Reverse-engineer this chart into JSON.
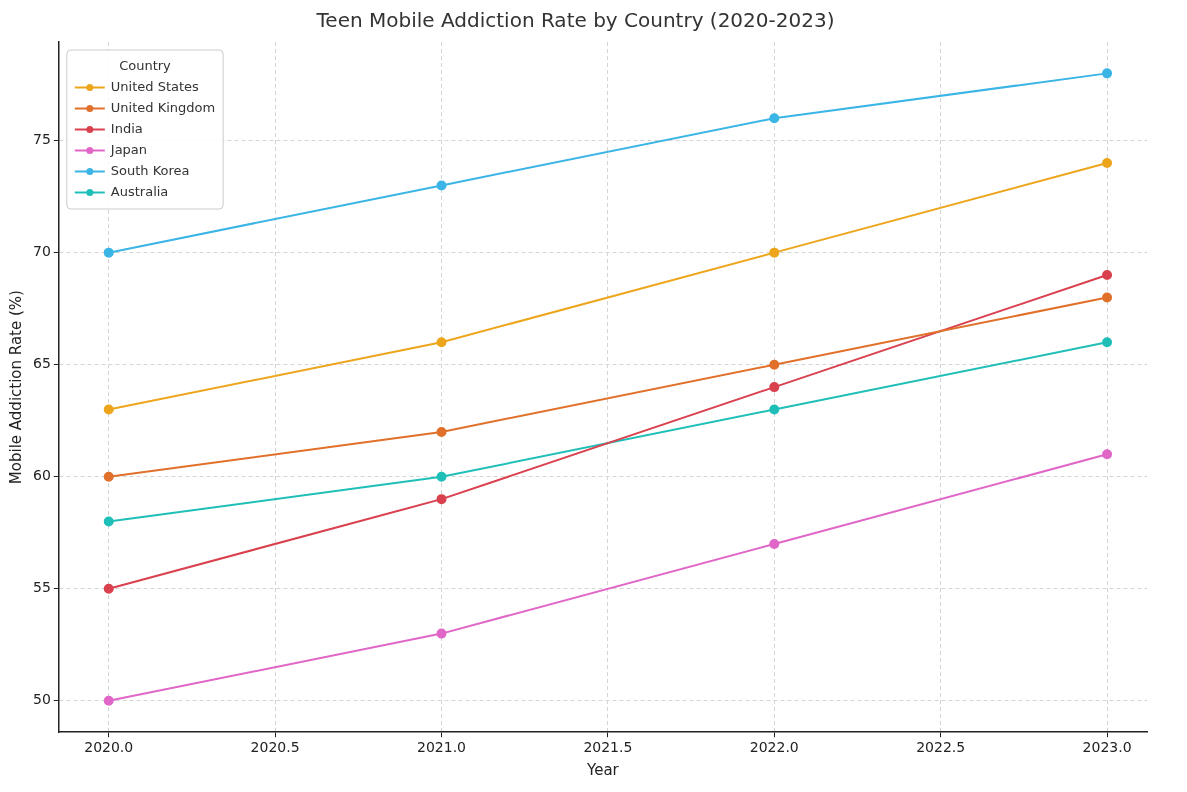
{
  "chart_data": {
    "type": "line",
    "title": "Teen Mobile Addiction Rate by Country (2020-2023)",
    "xlabel": "Year",
    "ylabel": "Mobile Addiction Rate (%)",
    "legend_title": "Country",
    "x": [
      2020,
      2021,
      2022,
      2023
    ],
    "series": [
      {
        "name": "United States",
        "color": "#eda51c",
        "values": [
          63,
          66,
          70,
          74
        ]
      },
      {
        "name": "United Kingdom",
        "color": "#e0702a",
        "values": [
          60,
          62,
          65,
          68
        ]
      },
      {
        "name": "India",
        "color": "#d9414e",
        "values": [
          55,
          59,
          64,
          69
        ]
      },
      {
        "name": "Japan",
        "color": "#e066c7",
        "values": [
          50,
          53,
          57,
          61
        ]
      },
      {
        "name": "South Korea",
        "color": "#3bb5e5",
        "values": [
          70,
          73,
          76,
          78
        ]
      },
      {
        "name": "Australia",
        "color": "#1fbfb8",
        "values": [
          58,
          60,
          63,
          66
        ]
      }
    ],
    "xlim": [
      2019.85,
      2023.12
    ],
    "ylim": [
      48.6,
      79.4
    ],
    "xticks": [
      {
        "value": 2020,
        "label": "2020.0"
      },
      {
        "value": 2020.5,
        "label": "2020.5"
      },
      {
        "value": 2021,
        "label": "2021.0"
      },
      {
        "value": 2021.5,
        "label": "2021.5"
      },
      {
        "value": 2022,
        "label": "2022.0"
      },
      {
        "value": 2022.5,
        "label": "2022.5"
      },
      {
        "value": 2023,
        "label": "2023.0"
      }
    ],
    "yticks": [
      50,
      55,
      60,
      65,
      70,
      75
    ],
    "grid": true,
    "legend": "top left",
    "marker": "circle",
    "line_style": "solid"
  }
}
